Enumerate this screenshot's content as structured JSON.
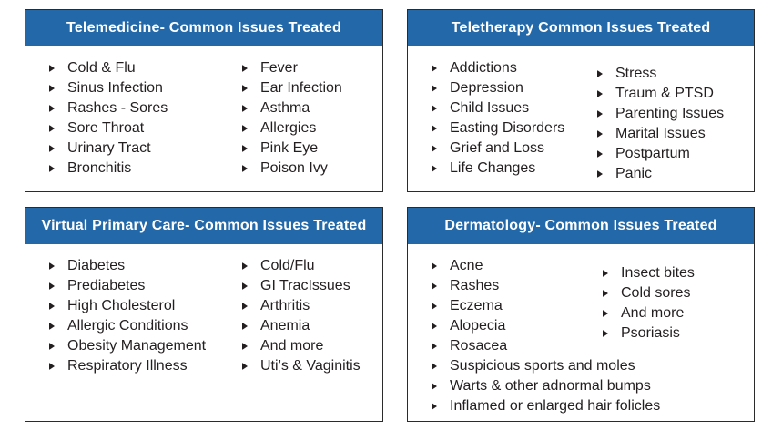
{
  "panels": [
    {
      "id": "telemedicine",
      "title": "Telemedicine- Common Issues Treated",
      "col1": [
        "Cold & Flu",
        "Sinus Infection",
        "Rashes - Sores",
        "Sore Throat",
        "Urinary Tract",
        "Bronchitis"
      ],
      "col2": [
        "Fever",
        "Ear Infection",
        "Asthma",
        "Allergies",
        "Pink Eye",
        "Poison Ivy"
      ],
      "full": []
    },
    {
      "id": "teletherapy",
      "title": "Teletherapy Common Issues Treated",
      "col1": [
        "Addictions",
        "Depression",
        "Child Issues",
        "Easting Disorders",
        "Grief and Loss",
        "Life Changes"
      ],
      "col2": [
        "Stress",
        "Traum & PTSD",
        "Parenting Issues",
        "Marital Issues",
        "Postpartum",
        "Panic"
      ],
      "full": []
    },
    {
      "id": "virtual-primary-care",
      "title": "Virtual Primary Care- Common Issues Treated",
      "col1": [
        "Diabetes",
        "Prediabetes",
        "High Cholesterol",
        "Allergic Conditions",
        "Obesity Management",
        "Respiratory Illness"
      ],
      "col2": [
        "Cold/Flu",
        "GI TracIssues",
        "Arthritis",
        "Anemia",
        "And more",
        "Uti’s & Vaginitis"
      ],
      "full": []
    },
    {
      "id": "dermatology",
      "title": "Dermatology- Common Issues Treated",
      "col1": [
        "Acne",
        "Rashes",
        "Eczema",
        "Alopecia",
        "Rosacea"
      ],
      "col2": [
        "Insect bites",
        "Cold sores",
        "And more",
        "Psoriasis"
      ],
      "full": [
        "Suspicious sports and moles",
        "Warts & other adnormal bumps",
        "Inflamed or enlarged hair folicles"
      ]
    }
  ],
  "colors": {
    "header_bg": "#2368A8",
    "header_text": "#FFFFFF",
    "body_text": "#231F20",
    "border": "#2B2B2B",
    "bullet": "#231F20"
  },
  "icons": {
    "bullet": "triangle-right"
  }
}
